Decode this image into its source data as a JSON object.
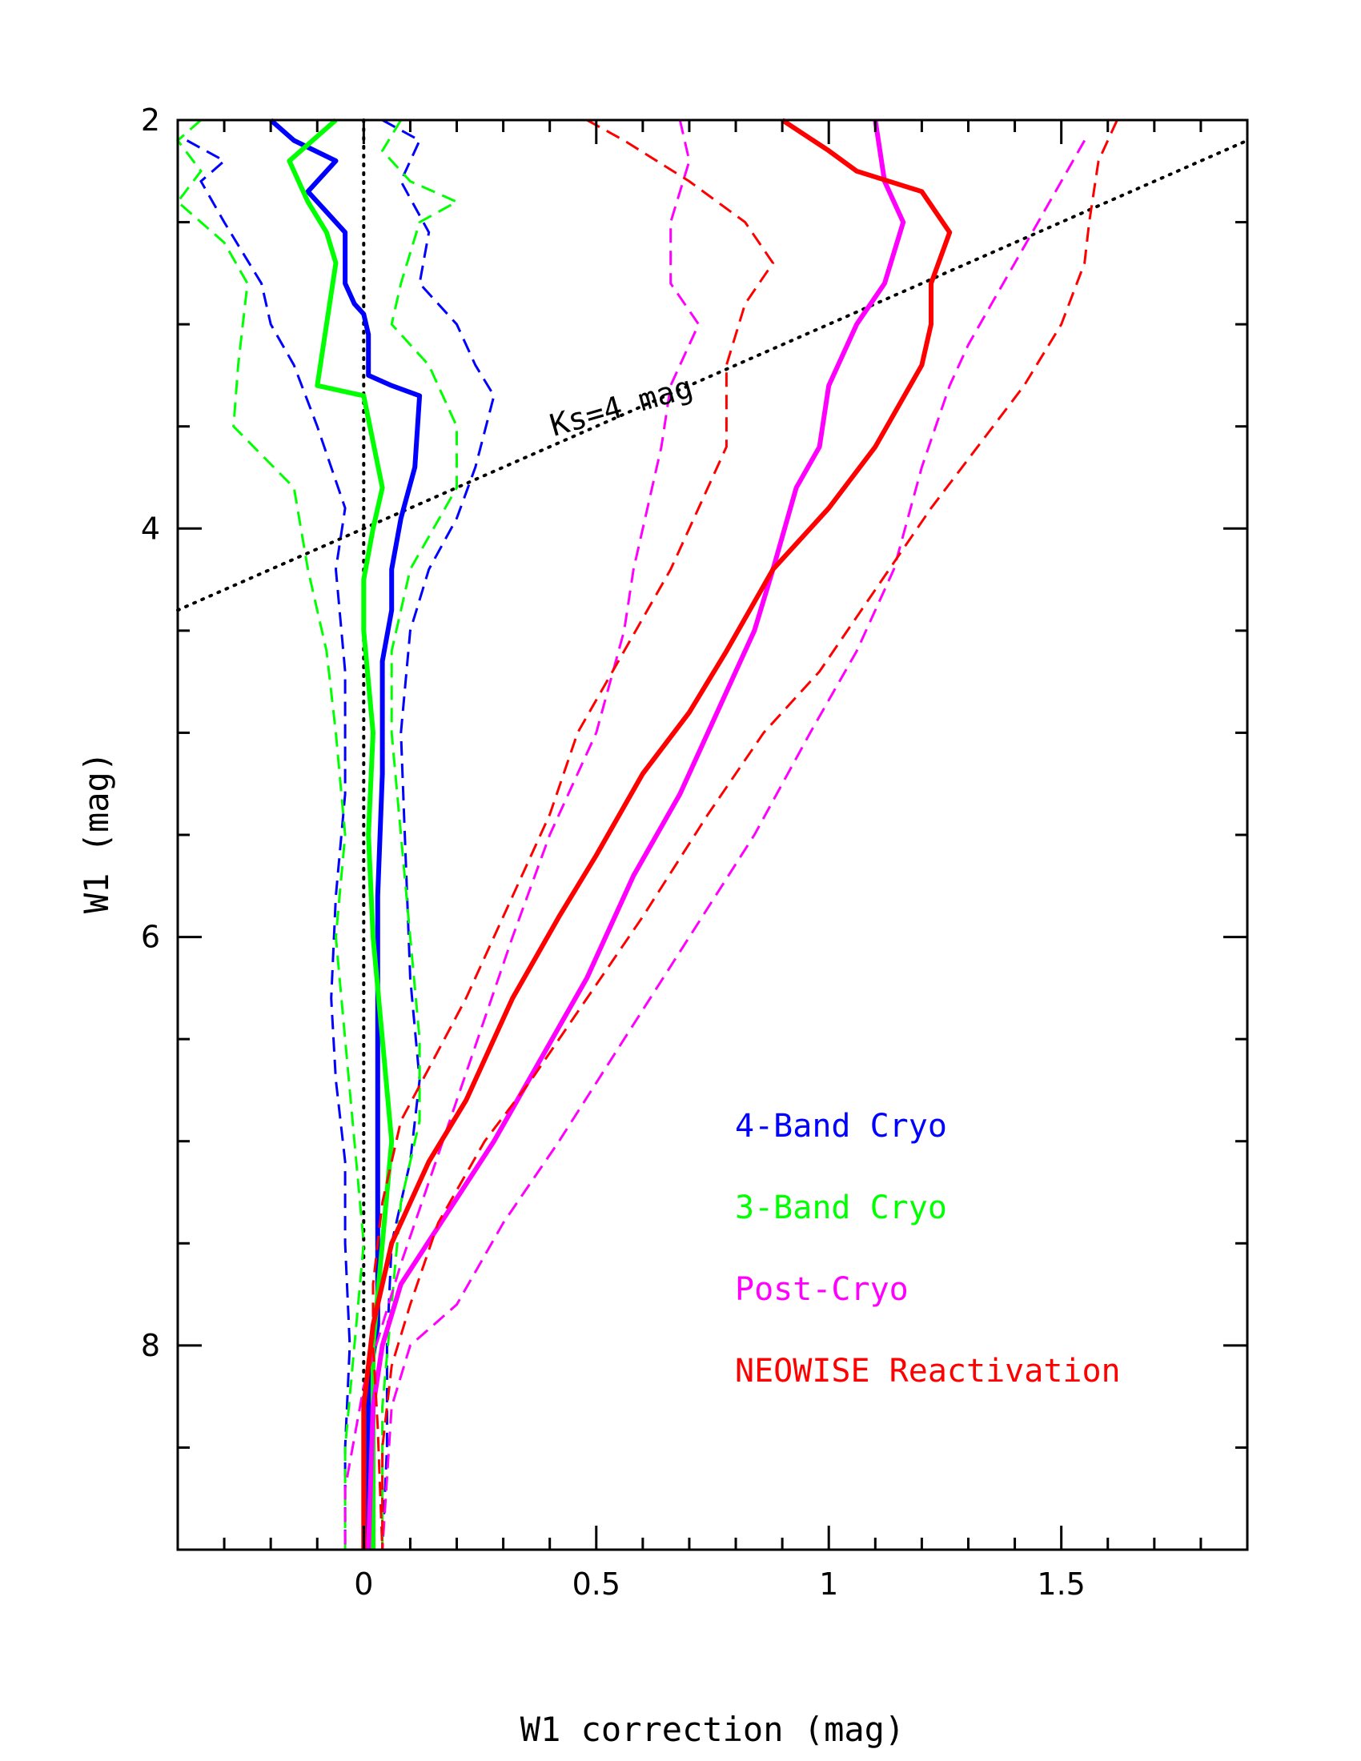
{
  "chart_data": {
    "type": "line",
    "xlabel": "W1 correction (mag)",
    "ylabel": "W1 (mag)",
    "xlim": [
      -0.4,
      1.9
    ],
    "ylim": [
      2,
      9
    ],
    "y_inverted": true,
    "grid": false,
    "legend_placement": "bottom-right",
    "x_ticks": [
      {
        "value": 0,
        "label": "0"
      },
      {
        "value": 0.5,
        "label": "0.5"
      },
      {
        "value": 1,
        "label": "1"
      },
      {
        "value": 1.5,
        "label": "1.5"
      }
    ],
    "y_ticks": [
      {
        "value": 4,
        "label": "4"
      },
      {
        "value": 6,
        "label": "6"
      },
      {
        "value": 8,
        "label": "8"
      }
    ],
    "y_tick_top_label": "2",
    "x_minor_step": 0.1,
    "y_minor_step": 0.5,
    "reference_lines": [
      {
        "name": "zero-line",
        "style": "dotted",
        "color": "#000000",
        "points": [
          [
            0,
            2
          ],
          [
            0,
            9
          ]
        ]
      },
      {
        "name": "ks-4-mag-line",
        "style": "dotted",
        "color": "#000000",
        "points": [
          [
            -0.4,
            4.4
          ],
          [
            1.9,
            2.1
          ]
        ]
      }
    ],
    "annotations": [
      {
        "text": "Ks=4 mag",
        "x": 0.56,
        "y": 3.45,
        "rotation_deg": -16
      }
    ],
    "series": [
      {
        "name": "4-Band Cryo",
        "color": "#0000ff",
        "median": [
          [
            -0.2,
            2.0
          ],
          [
            -0.15,
            2.1
          ],
          [
            -0.06,
            2.2
          ],
          [
            -0.12,
            2.35
          ],
          [
            -0.08,
            2.45
          ],
          [
            -0.04,
            2.55
          ],
          [
            -0.04,
            2.8
          ],
          [
            -0.02,
            2.9
          ],
          [
            0.0,
            2.95
          ],
          [
            0.01,
            3.05
          ],
          [
            0.01,
            3.25
          ],
          [
            0.06,
            3.3
          ],
          [
            0.12,
            3.35
          ],
          [
            0.11,
            3.7
          ],
          [
            0.08,
            3.95
          ],
          [
            0.06,
            4.2
          ],
          [
            0.06,
            4.4
          ],
          [
            0.04,
            4.65
          ],
          [
            0.04,
            5.2
          ],
          [
            0.03,
            5.8
          ],
          [
            0.03,
            6.3
          ],
          [
            0.03,
            6.9
          ],
          [
            0.03,
            7.4
          ],
          [
            0.03,
            7.9
          ],
          [
            0.01,
            8.2
          ],
          [
            0.01,
            9.0
          ]
        ],
        "lower": [
          [
            -0.38,
            2.1
          ],
          [
            -0.3,
            2.2
          ],
          [
            -0.35,
            2.3
          ],
          [
            -0.3,
            2.5
          ],
          [
            -0.22,
            2.8
          ],
          [
            -0.2,
            3.0
          ],
          [
            -0.15,
            3.2
          ],
          [
            -0.1,
            3.5
          ],
          [
            -0.04,
            3.9
          ],
          [
            -0.06,
            4.2
          ],
          [
            -0.04,
            4.7
          ],
          [
            -0.04,
            5.3
          ],
          [
            -0.06,
            5.8
          ],
          [
            -0.07,
            6.3
          ],
          [
            -0.06,
            6.7
          ],
          [
            -0.04,
            7.1
          ],
          [
            -0.04,
            7.5
          ],
          [
            -0.03,
            8.0
          ],
          [
            -0.04,
            8.5
          ],
          [
            -0.04,
            9.0
          ]
        ],
        "upper": [
          [
            0.04,
            2.0
          ],
          [
            0.12,
            2.1
          ],
          [
            0.08,
            2.3
          ],
          [
            0.14,
            2.55
          ],
          [
            0.12,
            2.8
          ],
          [
            0.2,
            3.0
          ],
          [
            0.24,
            3.2
          ],
          [
            0.28,
            3.35
          ],
          [
            0.24,
            3.7
          ],
          [
            0.2,
            3.95
          ],
          [
            0.14,
            4.2
          ],
          [
            0.1,
            4.5
          ],
          [
            0.08,
            5.0
          ],
          [
            0.09,
            5.6
          ],
          [
            0.1,
            6.2
          ],
          [
            0.12,
            6.7
          ],
          [
            0.1,
            7.1
          ],
          [
            0.06,
            7.5
          ],
          [
            0.05,
            8.0
          ],
          [
            0.05,
            8.5
          ],
          [
            0.04,
            9.0
          ]
        ]
      },
      {
        "name": "3-Band Cryo",
        "color": "#00ff00",
        "median": [
          [
            -0.06,
            2.0
          ],
          [
            -0.16,
            2.2
          ],
          [
            -0.12,
            2.4
          ],
          [
            -0.08,
            2.55
          ],
          [
            -0.06,
            2.7
          ],
          [
            -0.08,
            3.0
          ],
          [
            -0.1,
            3.3
          ],
          [
            0.0,
            3.35
          ],
          [
            0.04,
            3.8
          ],
          [
            0.02,
            4.0
          ],
          [
            0.0,
            4.25
          ],
          [
            0.0,
            4.5
          ],
          [
            0.02,
            5.0
          ],
          [
            0.01,
            5.5
          ],
          [
            0.02,
            6.0
          ],
          [
            0.04,
            6.5
          ],
          [
            0.06,
            7.0
          ],
          [
            0.04,
            7.5
          ],
          [
            0.02,
            8.0
          ],
          [
            0.02,
            9.0
          ]
        ],
        "lower": [
          [
            -0.35,
            2.0
          ],
          [
            -0.4,
            2.1
          ],
          [
            -0.35,
            2.25
          ],
          [
            -0.4,
            2.4
          ],
          [
            -0.3,
            2.6
          ],
          [
            -0.25,
            2.8
          ],
          [
            -0.27,
            3.2
          ],
          [
            -0.28,
            3.5
          ],
          [
            -0.15,
            3.8
          ],
          [
            -0.12,
            4.2
          ],
          [
            -0.08,
            4.6
          ],
          [
            -0.06,
            5.0
          ],
          [
            -0.04,
            5.5
          ],
          [
            -0.06,
            6.0
          ],
          [
            -0.04,
            6.5
          ],
          [
            -0.02,
            7.0
          ],
          [
            0.0,
            7.5
          ],
          [
            -0.02,
            8.0
          ],
          [
            -0.04,
            8.5
          ],
          [
            -0.04,
            9.0
          ]
        ],
        "upper": [
          [
            0.08,
            2.0
          ],
          [
            0.04,
            2.15
          ],
          [
            0.1,
            2.3
          ],
          [
            0.2,
            2.4
          ],
          [
            0.12,
            2.5
          ],
          [
            0.08,
            2.8
          ],
          [
            0.06,
            3.0
          ],
          [
            0.14,
            3.2
          ],
          [
            0.2,
            3.5
          ],
          [
            0.2,
            3.8
          ],
          [
            0.1,
            4.2
          ],
          [
            0.06,
            4.6
          ],
          [
            0.06,
            5.0
          ],
          [
            0.08,
            5.5
          ],
          [
            0.1,
            6.0
          ],
          [
            0.12,
            6.5
          ],
          [
            0.12,
            6.9
          ],
          [
            0.08,
            7.3
          ],
          [
            0.06,
            7.8
          ],
          [
            0.04,
            8.3
          ],
          [
            0.04,
            9.0
          ]
        ]
      },
      {
        "name": "Post-Cryo",
        "color": "#ff00ff",
        "median": [
          [
            1.1,
            2.0
          ],
          [
            1.12,
            2.3
          ],
          [
            1.16,
            2.5
          ],
          [
            1.12,
            2.8
          ],
          [
            1.06,
            3.0
          ],
          [
            1.0,
            3.3
          ],
          [
            0.98,
            3.6
          ],
          [
            0.93,
            3.8
          ],
          [
            0.88,
            4.2
          ],
          [
            0.84,
            4.5
          ],
          [
            0.8,
            4.7
          ],
          [
            0.74,
            5.0
          ],
          [
            0.68,
            5.3
          ],
          [
            0.58,
            5.7
          ],
          [
            0.48,
            6.2
          ],
          [
            0.38,
            6.6
          ],
          [
            0.28,
            7.0
          ],
          [
            0.18,
            7.35
          ],
          [
            0.08,
            7.7
          ],
          [
            0.04,
            8.0
          ],
          [
            0.02,
            8.3
          ],
          [
            0.01,
            9.0
          ]
        ],
        "lower": [
          [
            0.68,
            2.0
          ],
          [
            0.7,
            2.2
          ],
          [
            0.66,
            2.5
          ],
          [
            0.66,
            2.8
          ],
          [
            0.72,
            3.0
          ],
          [
            0.66,
            3.3
          ],
          [
            0.64,
            3.6
          ],
          [
            0.6,
            4.0
          ],
          [
            0.58,
            4.2
          ],
          [
            0.56,
            4.5
          ],
          [
            0.5,
            5.0
          ],
          [
            0.4,
            5.5
          ],
          [
            0.32,
            6.0
          ],
          [
            0.26,
            6.4
          ],
          [
            0.2,
            6.8
          ],
          [
            0.14,
            7.2
          ],
          [
            0.08,
            7.6
          ],
          [
            0.04,
            7.9
          ],
          [
            0.0,
            8.2
          ],
          [
            -0.04,
            8.7
          ],
          [
            -0.04,
            9.0
          ]
        ],
        "upper": [
          [
            1.55,
            2.1
          ],
          [
            1.5,
            2.3
          ],
          [
            1.45,
            2.5
          ],
          [
            1.4,
            2.7
          ],
          [
            1.35,
            2.9
          ],
          [
            1.3,
            3.1
          ],
          [
            1.26,
            3.3
          ],
          [
            1.2,
            3.7
          ],
          [
            1.14,
            4.2
          ],
          [
            1.06,
            4.6
          ],
          [
            0.96,
            5.0
          ],
          [
            0.84,
            5.5
          ],
          [
            0.7,
            6.0
          ],
          [
            0.56,
            6.5
          ],
          [
            0.42,
            7.0
          ],
          [
            0.3,
            7.4
          ],
          [
            0.2,
            7.8
          ],
          [
            0.1,
            8.0
          ],
          [
            0.06,
            8.3
          ],
          [
            0.04,
            9.0
          ]
        ]
      },
      {
        "name": "NEOWISE Reactivation",
        "color": "#ff0000",
        "median": [
          [
            0.9,
            2.0
          ],
          [
            1.0,
            2.15
          ],
          [
            1.06,
            2.25
          ],
          [
            1.2,
            2.35
          ],
          [
            1.26,
            2.55
          ],
          [
            1.22,
            2.8
          ],
          [
            1.22,
            3.0
          ],
          [
            1.2,
            3.2
          ],
          [
            1.1,
            3.6
          ],
          [
            1.0,
            3.9
          ],
          [
            0.88,
            4.2
          ],
          [
            0.78,
            4.6
          ],
          [
            0.7,
            4.9
          ],
          [
            0.6,
            5.2
          ],
          [
            0.5,
            5.6
          ],
          [
            0.42,
            5.9
          ],
          [
            0.32,
            6.3
          ],
          [
            0.22,
            6.8
          ],
          [
            0.14,
            7.1
          ],
          [
            0.06,
            7.5
          ],
          [
            0.02,
            7.9
          ],
          [
            0.0,
            8.3
          ],
          [
            0.0,
            9.0
          ]
        ],
        "lower": [
          [
            0.48,
            2.0
          ],
          [
            0.56,
            2.1
          ],
          [
            0.7,
            2.3
          ],
          [
            0.82,
            2.5
          ],
          [
            0.88,
            2.7
          ],
          [
            0.82,
            2.9
          ],
          [
            0.78,
            3.2
          ],
          [
            0.78,
            3.6
          ],
          [
            0.72,
            3.9
          ],
          [
            0.66,
            4.2
          ],
          [
            0.56,
            4.6
          ],
          [
            0.46,
            5.0
          ],
          [
            0.4,
            5.4
          ],
          [
            0.3,
            5.9
          ],
          [
            0.22,
            6.3
          ],
          [
            0.15,
            6.6
          ],
          [
            0.08,
            6.9
          ],
          [
            0.04,
            7.3
          ],
          [
            0.02,
            7.7
          ],
          [
            0.02,
            8.0
          ],
          [
            0.03,
            8.4
          ],
          [
            0.04,
            9.0
          ]
        ],
        "upper": [
          [
            1.62,
            2.0
          ],
          [
            1.58,
            2.2
          ],
          [
            1.56,
            2.5
          ],
          [
            1.55,
            2.7
          ],
          [
            1.5,
            3.0
          ],
          [
            1.42,
            3.3
          ],
          [
            1.32,
            3.6
          ],
          [
            1.22,
            3.9
          ],
          [
            1.1,
            4.3
          ],
          [
            0.98,
            4.7
          ],
          [
            0.86,
            5.0
          ],
          [
            0.74,
            5.4
          ],
          [
            0.6,
            5.9
          ],
          [
            0.48,
            6.3
          ],
          [
            0.36,
            6.7
          ],
          [
            0.26,
            7.0
          ],
          [
            0.16,
            7.4
          ],
          [
            0.1,
            7.8
          ],
          [
            0.06,
            8.1
          ],
          [
            0.04,
            8.5
          ],
          [
            0.04,
            9.0
          ]
        ]
      }
    ]
  }
}
